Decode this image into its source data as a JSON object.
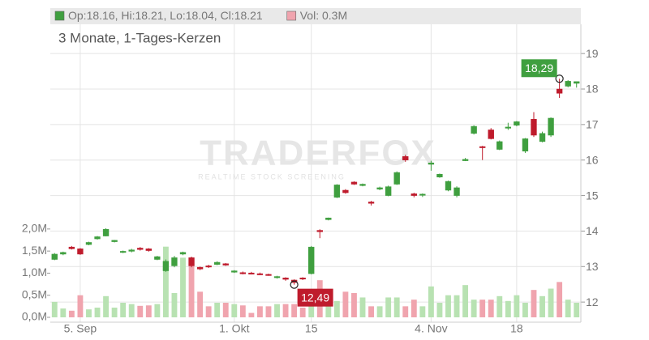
{
  "chart_data": {
    "type": "candlestick",
    "subtitle": "3 Monate, 1-Tages-Kerzen",
    "watermark": "TRADERFOX",
    "watermark_sub": "REALTIME STOCK SCREENING",
    "legend_items": [
      {
        "label": "Op:18.16, Hi:18.21, Lo:18.04, Cl:18.21",
        "color": "#3f9f3f"
      },
      {
        "label": "Vol: 0.3M",
        "color": "#f0a4ae"
      }
    ],
    "categories": [
      null,
      null,
      null,
      "5. Sep",
      null,
      null,
      null,
      null,
      null,
      null,
      null,
      null,
      null,
      null,
      null,
      null,
      null,
      null,
      null,
      null,
      null,
      "1. Okt",
      null,
      null,
      null,
      null,
      null,
      null,
      null,
      null,
      "15",
      null,
      null,
      null,
      null,
      null,
      null,
      null,
      null,
      null,
      null,
      null,
      null,
      null,
      "4. Nov",
      null,
      null,
      null,
      null,
      null,
      null,
      null,
      null,
      null,
      "18",
      null,
      null,
      null,
      null,
      null,
      null,
      null
    ],
    "open": [
      13.2,
      13.35,
      13.55,
      13.5,
      13.62,
      13.78,
      13.86,
      13.7,
      13.4,
      13.43,
      13.52,
      13.5,
      13.2,
      12.88,
      13.02,
      13.35,
      13.25,
      12.98,
      13.02,
      13.06,
      13.08,
      12.84,
      12.83,
      12.82,
      12.8,
      12.78,
      12.7,
      12.68,
      12.62,
      12.68,
      12.8,
      14.02,
      14.32,
      14.95,
      15.15,
      15.38,
      15.28,
      14.82,
      15.18,
      15.0,
      15.32,
      16.1,
      15.05,
      15.02,
      15.88,
      15.52,
      15.15,
      15.0,
      15.98,
      16.75,
      16.38,
      16.85,
      16.3,
      16.9,
      16.98,
      16.25,
      17.15,
      16.52,
      16.7,
      18.0,
      18.08,
      18.16
    ],
    "high": [
      13.38,
      13.42,
      13.58,
      13.52,
      13.7,
      13.86,
      14.08,
      13.75,
      13.45,
      13.5,
      13.55,
      13.52,
      13.3,
      13.2,
      13.3,
      13.42,
      13.28,
      13.0,
      13.05,
      13.15,
      13.1,
      12.9,
      12.86,
      12.85,
      12.83,
      12.8,
      12.74,
      12.7,
      12.64,
      12.7,
      13.58,
      14.05,
      14.38,
      15.32,
      15.18,
      15.4,
      15.34,
      14.85,
      15.25,
      15.28,
      15.68,
      16.15,
      15.08,
      15.06,
      15.98,
      15.62,
      15.42,
      15.26,
      16.06,
      16.98,
      16.4,
      16.9,
      16.55,
      17.05,
      17.1,
      16.62,
      17.35,
      16.8,
      17.2,
      18.29,
      18.25,
      18.21
    ],
    "low": [
      13.18,
      13.32,
      13.48,
      13.33,
      13.6,
      13.76,
      13.85,
      13.68,
      13.38,
      13.4,
      13.45,
      13.42,
      13.18,
      12.85,
      12.98,
      13.32,
      12.98,
      12.9,
      12.96,
      13.04,
      13.02,
      12.82,
      12.78,
      12.78,
      12.76,
      12.74,
      12.66,
      12.6,
      12.49,
      12.62,
      12.78,
      13.8,
      14.3,
      14.93,
      15.05,
      15.3,
      15.26,
      14.72,
      15.15,
      14.98,
      15.3,
      15.95,
      14.95,
      14.96,
      15.7,
      15.5,
      15.12,
      14.95,
      15.97,
      16.72,
      16.0,
      16.58,
      16.28,
      16.85,
      16.95,
      16.2,
      16.65,
      16.5,
      16.65,
      17.75,
      18.05,
      18.04
    ],
    "close": [
      13.35,
      13.4,
      13.5,
      13.35,
      13.68,
      13.84,
      14.05,
      13.74,
      13.43,
      13.47,
      13.48,
      13.45,
      13.28,
      13.15,
      13.25,
      13.4,
      13.02,
      12.93,
      12.99,
      13.12,
      13.04,
      12.88,
      12.8,
      12.8,
      12.78,
      12.76,
      12.72,
      12.64,
      12.55,
      12.66,
      13.55,
      13.98,
      14.37,
      15.3,
      15.08,
      15.32,
      15.32,
      14.78,
      15.22,
      15.25,
      15.65,
      16.0,
      15.0,
      15.04,
      15.92,
      15.6,
      15.4,
      15.22,
      16.02,
      16.95,
      16.35,
      16.6,
      16.52,
      16.93,
      17.08,
      16.6,
      16.7,
      16.75,
      17.18,
      17.88,
      18.22,
      18.21
    ],
    "volume": [
      0.35,
      0.2,
      0.15,
      0.5,
      0.18,
      0.22,
      0.48,
      0.22,
      0.33,
      0.3,
      0.26,
      0.27,
      0.3,
      1.6,
      0.55,
      1.35,
      1.23,
      0.58,
      0.25,
      0.33,
      0.33,
      0.3,
      0.27,
      0.1,
      0.25,
      0.25,
      0.3,
      0.3,
      0.3,
      0.22,
      0.48,
      0.84,
      0.37,
      0.37,
      0.58,
      0.55,
      0.45,
      0.25,
      0.25,
      0.45,
      0.45,
      0.25,
      0.4,
      0.25,
      0.7,
      0.33,
      0.5,
      0.5,
      0.73,
      0.4,
      0.4,
      0.4,
      0.48,
      0.37,
      0.5,
      0.33,
      0.62,
      0.48,
      0.65,
      0.8,
      0.4,
      0.33
    ],
    "up_color": "#3f9f3f",
    "down_color": "#bf1b2c",
    "vol_up_color": "#b8e2b2",
    "vol_down_color": "#f0a4ae",
    "ylim": [
      11.57,
      20.28
    ],
    "yticks": [
      12,
      13,
      14,
      15,
      16,
      17,
      18,
      19
    ],
    "y2lim": [
      0,
      7
    ],
    "y2ticks": [
      {
        "value": 0,
        "label": "0,0M"
      },
      {
        "value": 0.5,
        "label": "0,5M"
      },
      {
        "value": 1,
        "label": "1,0M"
      },
      {
        "value": 1.5,
        "label": "1,5M"
      },
      {
        "value": 2,
        "label": "2,0M"
      }
    ],
    "annotations": [
      {
        "value": 18.29,
        "label": "18,29",
        "kind": "max"
      },
      {
        "value": 12.49,
        "label": "12,49",
        "kind": "min"
      }
    ],
    "grid": true
  }
}
